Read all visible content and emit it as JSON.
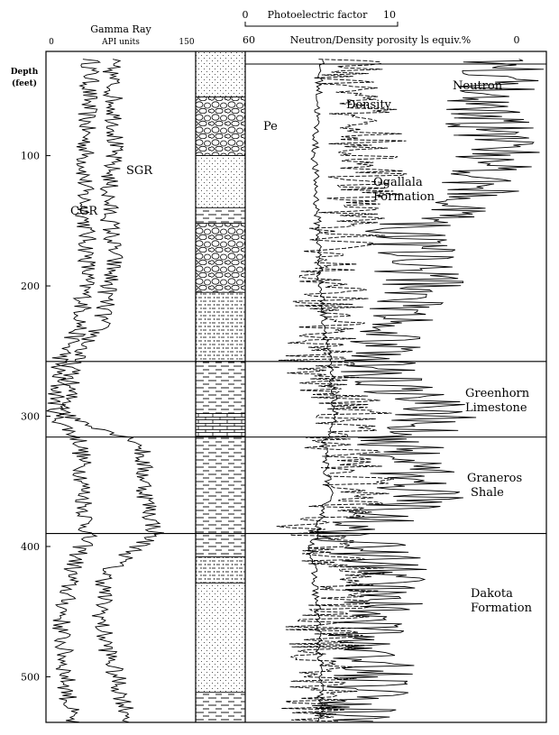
{
  "chart_data": {
    "type": "line",
    "depth_axis": {
      "label_line1": "Depth",
      "label_line2": "(feet)",
      "ticks": [
        100,
        200,
        300,
        400,
        500
      ],
      "range": [
        20,
        535
      ]
    },
    "gamma_track": {
      "title": "Gamma Ray",
      "units": "API units",
      "min_label": "0",
      "max_label": "150",
      "range": [
        0,
        150
      ],
      "series": [
        {
          "name": "CGR",
          "depth": [
            30,
            80,
            130,
            180,
            230,
            260,
            300,
            320,
            360,
            390,
            420,
            460,
            500,
            535
          ],
          "values": [
            45,
            40,
            38,
            42,
            35,
            12,
            10,
            35,
            38,
            42,
            25,
            15,
            20,
            25
          ]
        },
        {
          "name": "SGR",
          "depth": [
            30,
            80,
            130,
            180,
            230,
            260,
            300,
            320,
            360,
            390,
            420,
            460,
            500,
            535
          ],
          "values": [
            65,
            70,
            62,
            68,
            55,
            25,
            22,
            95,
            100,
            110,
            60,
            55,
            70,
            85
          ]
        }
      ]
    },
    "pe_track": {
      "title": "Photoelectric factor",
      "min_label": "0",
      "max_label": "10",
      "range": [
        0,
        10
      ]
    },
    "porosity_track": {
      "title": "Neutron/Density porosity ls equiv.%",
      "min_label": "60",
      "max_label": "0",
      "range": [
        60,
        0
      ],
      "series": [
        {
          "name": "Pe",
          "depth": [
            30,
            100,
            200,
            260,
            300,
            320,
            360,
            400,
            450,
            500,
            535
          ],
          "values": [
            2.5,
            2.3,
            2.5,
            2.8,
            3.0,
            2.6,
            2.8,
            2.2,
            2.4,
            2.5,
            2.5
          ]
        },
        {
          "name": "Neutron",
          "depth": [
            30,
            60,
            100,
            130,
            160,
            200,
            230,
            260,
            300,
            320,
            360,
            390,
            420,
            460,
            500,
            535
          ],
          "values": [
            8,
            12,
            10,
            14,
            28,
            25,
            30,
            35,
            22,
            30,
            24,
            40,
            30,
            36,
            34,
            40
          ]
        },
        {
          "name": "Density",
          "depth": [
            30,
            60,
            100,
            130,
            160,
            200,
            230,
            260,
            300,
            320,
            360,
            390,
            420,
            460,
            500,
            535
          ],
          "values": [
            40,
            38,
            35,
            36,
            40,
            42,
            44,
            46,
            38,
            42,
            36,
            48,
            38,
            44,
            44,
            48
          ]
        }
      ]
    },
    "formation_tops": [
      258,
      316,
      390
    ],
    "formations": [
      {
        "name_line1": "Ogallala",
        "name_line2": "Formation"
      },
      {
        "name_line1": "Greenhorn",
        "name_line2": "Limestone"
      },
      {
        "name_line1": "Graneros",
        "name_line2": "Shale"
      },
      {
        "name_line1": "Dakota",
        "name_line2": "Formation"
      }
    ],
    "lithology": [
      {
        "top": 20,
        "base": 55,
        "type": "sandstone"
      },
      {
        "top": 55,
        "base": 100,
        "type": "conglomerate"
      },
      {
        "top": 100,
        "base": 140,
        "type": "sandstone"
      },
      {
        "top": 140,
        "base": 152,
        "type": "shale"
      },
      {
        "top": 152,
        "base": 205,
        "type": "conglomerate"
      },
      {
        "top": 205,
        "base": 258,
        "type": "sandy"
      },
      {
        "top": 258,
        "base": 298,
        "type": "shale"
      },
      {
        "top": 298,
        "base": 316,
        "type": "limestone"
      },
      {
        "top": 316,
        "base": 390,
        "type": "shale"
      },
      {
        "top": 390,
        "base": 408,
        "type": "shale"
      },
      {
        "top": 408,
        "base": 428,
        "type": "sandy"
      },
      {
        "top": 428,
        "base": 512,
        "type": "sandstone"
      },
      {
        "top": 512,
        "base": 535,
        "type": "shale"
      }
    ]
  }
}
